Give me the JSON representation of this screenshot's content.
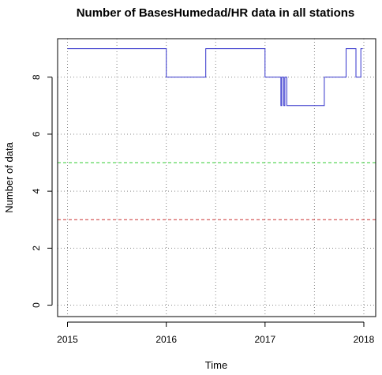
{
  "chart_data": {
    "type": "line",
    "title": "Number of BasesHumedad/HR data in all stations",
    "xlabel": "Time",
    "ylabel": "Number of data",
    "xlim": [
      2014.9,
      2018.12
    ],
    "ylim": [
      -0.4,
      9.35
    ],
    "x_ticks": [
      2015,
      2016,
      2017,
      2018
    ],
    "y_ticks": [
      0,
      2,
      4,
      6,
      8
    ],
    "grid": true,
    "colors": {
      "series": "#3333cc",
      "upper_threshold": "#33cc33",
      "lower_threshold": "#cc3333",
      "grid": "#888888"
    },
    "series": [
      {
        "x": [
          2015.0,
          2016.0,
          2016.0,
          2016.4,
          2016.4,
          2017.0,
          2017.0,
          2017.16,
          2017.16,
          2017.17,
          2017.17,
          2017.19,
          2017.19,
          2017.2,
          2017.2,
          2017.22,
          2017.22,
          2017.6,
          2017.6,
          2017.82,
          2017.82,
          2017.92,
          2017.92,
          2017.97,
          2017.97,
          2017.99
        ],
        "y": [
          9,
          9,
          8,
          8,
          9,
          9,
          8,
          8,
          7,
          7,
          8,
          8,
          7,
          7,
          8,
          8,
          7,
          7,
          8,
          8,
          9,
          9,
          8,
          8,
          9,
          9
        ]
      }
    ],
    "reference_lines": [
      {
        "y": 5,
        "style": "dashed",
        "color": "#33cc33"
      },
      {
        "y": 3,
        "style": "dashed",
        "color": "#cc3333"
      }
    ]
  }
}
